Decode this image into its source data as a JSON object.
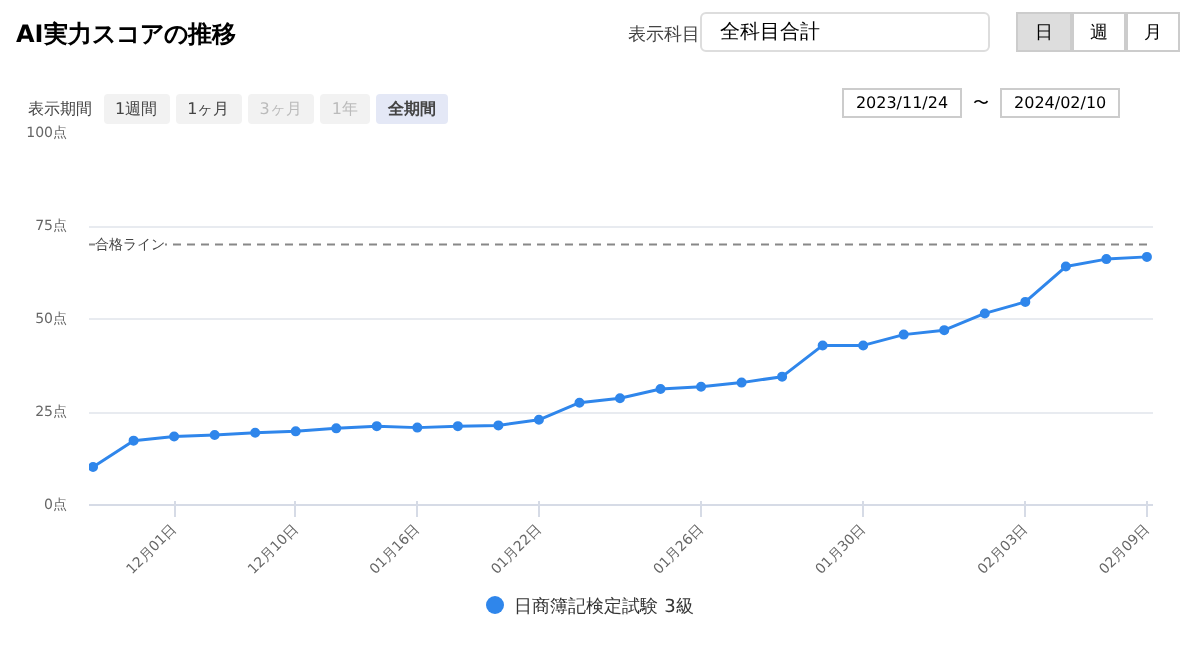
{
  "chart_data": {
    "type": "line",
    "title": "AI実力スコアの推移",
    "annotations": [
      "表示科目",
      "全科目合計",
      "日",
      "週",
      "月",
      "表示期間",
      "1週間",
      "1ヶ月",
      "3ヶ月",
      "1年",
      "全期間",
      "2023/11/24",
      "〜",
      "2024/02/10"
    ],
    "categories": [
      null,
      null,
      "12月01日",
      null,
      null,
      "12月10日",
      null,
      null,
      "01月16日",
      null,
      null,
      "01月22日",
      null,
      null,
      null,
      "01月26日",
      null,
      null,
      null,
      "01月30日",
      null,
      null,
      null,
      "02月03日",
      null,
      null,
      "02月09日"
    ],
    "series": [
      {
        "name": "日商簿記検定試験 3級",
        "color": "#2f86eb",
        "values": [
          10.2,
          17.3,
          18.4,
          18.8,
          19.4,
          19.8,
          20.6,
          21.2,
          20.8,
          21.2,
          21.4,
          22.9,
          27.5,
          28.7,
          31.2,
          31.8,
          32.9,
          34.5,
          42.9,
          42.9,
          45.8,
          47.0,
          51.5,
          54.6,
          64.1,
          66.1,
          66.7
        ]
      }
    ],
    "ylim": [
      0,
      100
    ],
    "yticks": [
      {
        "value": 0,
        "label": "0点"
      },
      {
        "value": 25,
        "label": "25点"
      },
      {
        "value": 50,
        "label": "50点"
      },
      {
        "value": 75,
        "label": "75点"
      },
      {
        "value": 100,
        "label": "100点"
      }
    ],
    "ref_lines": [
      {
        "axis": "y",
        "value": 70,
        "label": "合格ライン",
        "color": "#888888",
        "line_style": "dashed"
      }
    ],
    "grid": "y",
    "legend": "bottom",
    "marker": "circle",
    "line_style": "solid"
  }
}
